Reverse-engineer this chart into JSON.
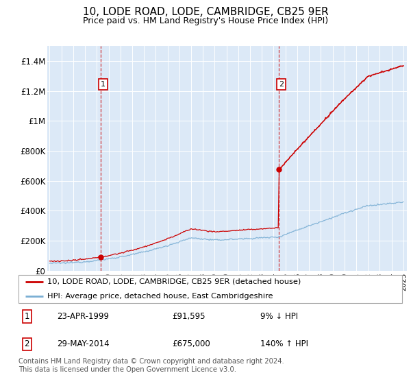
{
  "title": "10, LODE ROAD, LODE, CAMBRIDGE, CB25 9ER",
  "subtitle": "Price paid vs. HM Land Registry's House Price Index (HPI)",
  "bg_color": "#dce9f7",
  "line1_color": "#cc0000",
  "line2_color": "#7bafd4",
  "ylim": [
    0,
    1500000
  ],
  "yticks": [
    0,
    200000,
    400000,
    600000,
    800000,
    1000000,
    1200000,
    1400000
  ],
  "ytick_labels": [
    "£0",
    "£200K",
    "£400K",
    "£600K",
    "£800K",
    "£1M",
    "£1.2M",
    "£1.4M"
  ],
  "sale1_year": 1999.32,
  "sale1_price": 91595,
  "sale2_year": 2014.42,
  "sale2_price": 675000,
  "legend_line1": "10, LODE ROAD, LODE, CAMBRIDGE, CB25 9ER (detached house)",
  "legend_line2": "HPI: Average price, detached house, East Cambridgeshire",
  "annotation1": [
    "1",
    "23-APR-1999",
    "£91,595",
    "9% ↓ HPI"
  ],
  "annotation2": [
    "2",
    "29-MAY-2014",
    "£675,000",
    "140% ↑ HPI"
  ],
  "footer": "Contains HM Land Registry data © Crown copyright and database right 2024.\nThis data is licensed under the Open Government Licence v3.0.",
  "xmin": 1994.8,
  "xmax": 2025.3
}
